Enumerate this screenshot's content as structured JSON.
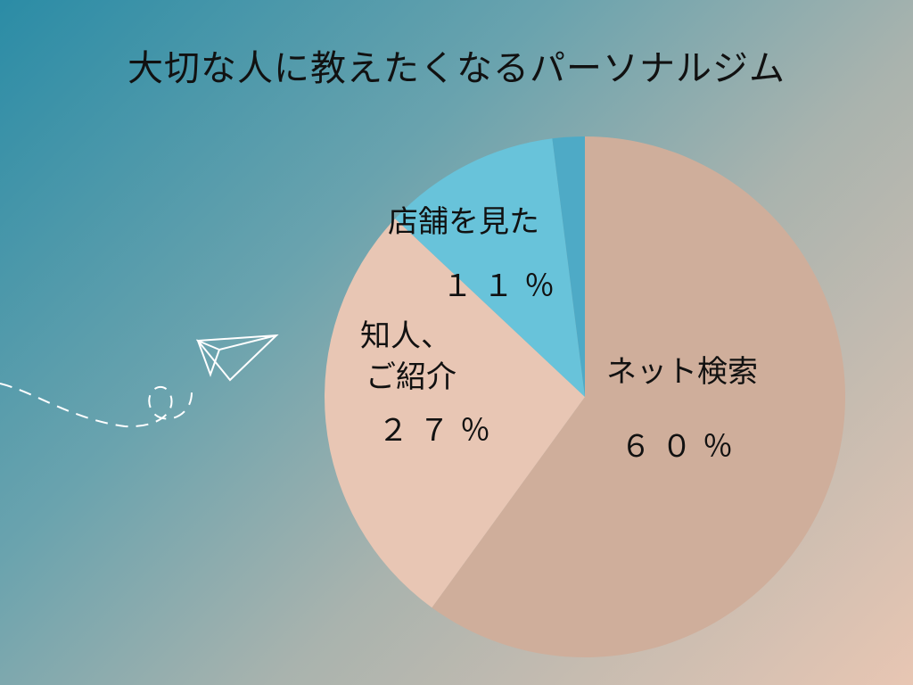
{
  "chart_data": {
    "type": "pie",
    "title": "大切な人に教えたくなるパーソナルジム",
    "slices": [
      {
        "label": "ネット検索",
        "value": 60,
        "value_label": "６０％",
        "color": "#cfae9b"
      },
      {
        "label_lines": [
          "知人、",
          "ご紹介"
        ],
        "value": 27,
        "value_label": "２７％",
        "color": "#e8c6b4"
      },
      {
        "label": "店舗を見た",
        "value": 11,
        "value_label": "１１％",
        "color": "#68c3da"
      },
      {
        "label": "",
        "value": 2,
        "color": "#4eaac6"
      }
    ],
    "start": "top",
    "direction": "clockwise"
  },
  "decoration": {
    "icon": "paper-airplane-icon",
    "color": "#ffffff"
  }
}
